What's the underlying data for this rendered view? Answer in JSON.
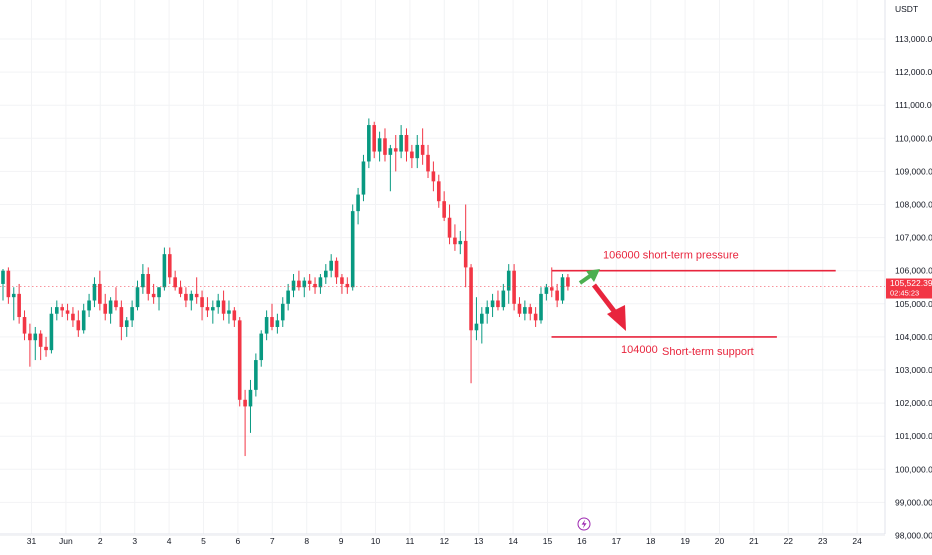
{
  "currency": "USDT",
  "price_tag": {
    "price": "105,522.39",
    "countdown": "02:45:23",
    "color": "#f23645"
  },
  "colors": {
    "up": "#089981",
    "down": "#f23645",
    "annotation": "#e8253d",
    "arrow_up": "#4caf50",
    "grid": "#f2f3f5",
    "axis_text": "#131722"
  },
  "chart_data": {
    "type": "candlestick",
    "title": "",
    "ylim": [
      98000,
      113500
    ],
    "y_ticks": [
      "98,000.00",
      "99,000.00",
      "100,000.00",
      "101,000.00",
      "102,000.00",
      "103,000.00",
      "104,000.00",
      "105,000.00",
      "106,000.00",
      "107,000.00",
      "108,000.00",
      "109,000.00",
      "110,000.00",
      "111,000.00",
      "112,000.00",
      "113,000.00"
    ],
    "x_ticks": [
      {
        "label": "31",
        "date": "2025-05-31"
      },
      {
        "label": "Jun",
        "date": "2025-06-01"
      },
      {
        "label": "2",
        "date": "2025-06-02"
      },
      {
        "label": "3",
        "date": "2025-06-03"
      },
      {
        "label": "4",
        "date": "2025-06-04"
      },
      {
        "label": "5",
        "date": "2025-06-05"
      },
      {
        "label": "6",
        "date": "2025-06-06"
      },
      {
        "label": "7",
        "date": "2025-06-07"
      },
      {
        "label": "8",
        "date": "2025-06-08"
      },
      {
        "label": "9",
        "date": "2025-06-09"
      },
      {
        "label": "10",
        "date": "2025-06-10"
      },
      {
        "label": "11",
        "date": "2025-06-11"
      },
      {
        "label": "12",
        "date": "2025-06-12"
      },
      {
        "label": "13",
        "date": "2025-06-13"
      },
      {
        "label": "14",
        "date": "2025-06-14"
      },
      {
        "label": "15",
        "date": "2025-06-15"
      },
      {
        "label": "16",
        "date": "2025-06-16"
      },
      {
        "label": "17",
        "date": "2025-06-17"
      },
      {
        "label": "18",
        "date": "2025-06-18"
      },
      {
        "label": "19",
        "date": "2025-06-19"
      },
      {
        "label": "20",
        "date": "2025-06-20"
      },
      {
        "label": "21",
        "date": "2025-06-21"
      },
      {
        "label": "22",
        "date": "2025-06-22"
      },
      {
        "label": "23",
        "date": "2025-06-23"
      },
      {
        "label": "24",
        "date": "2025-06-24"
      }
    ],
    "current_price": 105522.39,
    "candles": [
      {
        "o": 105600,
        "h": 106050,
        "l": 105100,
        "c": 106000
      },
      {
        "o": 106000,
        "h": 106100,
        "l": 105000,
        "c": 105200
      },
      {
        "o": 105200,
        "h": 105500,
        "l": 104500,
        "c": 105300
      },
      {
        "o": 105300,
        "h": 105600,
        "l": 104400,
        "c": 104600
      },
      {
        "o": 104600,
        "h": 104800,
        "l": 103900,
        "c": 104100
      },
      {
        "o": 104100,
        "h": 104400,
        "l": 103100,
        "c": 103900
      },
      {
        "o": 103900,
        "h": 104300,
        "l": 103300,
        "c": 104100
      },
      {
        "o": 104100,
        "h": 104200,
        "l": 103300,
        "c": 103700
      },
      {
        "o": 103700,
        "h": 104000,
        "l": 103400,
        "c": 103600
      },
      {
        "o": 103600,
        "h": 104900,
        "l": 103500,
        "c": 104700
      },
      {
        "o": 104700,
        "h": 105100,
        "l": 104500,
        "c": 104900
      },
      {
        "o": 104900,
        "h": 105000,
        "l": 104600,
        "c": 104800
      },
      {
        "o": 104800,
        "h": 105000,
        "l": 104500,
        "c": 104700
      },
      {
        "o": 104700,
        "h": 104900,
        "l": 104300,
        "c": 104500
      },
      {
        "o": 104500,
        "h": 104800,
        "l": 104000,
        "c": 104200
      },
      {
        "o": 104200,
        "h": 105000,
        "l": 104100,
        "c": 104800
      },
      {
        "o": 104800,
        "h": 105300,
        "l": 104600,
        "c": 105100
      },
      {
        "o": 105100,
        "h": 105800,
        "l": 104900,
        "c": 105600
      },
      {
        "o": 105600,
        "h": 106000,
        "l": 104800,
        "c": 105000
      },
      {
        "o": 105000,
        "h": 105300,
        "l": 104500,
        "c": 104700
      },
      {
        "o": 104700,
        "h": 105200,
        "l": 104400,
        "c": 105100
      },
      {
        "o": 105100,
        "h": 105500,
        "l": 104800,
        "c": 104900
      },
      {
        "o": 104900,
        "h": 105100,
        "l": 103900,
        "c": 104300
      },
      {
        "o": 104300,
        "h": 104600,
        "l": 104000,
        "c": 104500
      },
      {
        "o": 104500,
        "h": 105100,
        "l": 104300,
        "c": 104900
      },
      {
        "o": 104900,
        "h": 105700,
        "l": 104800,
        "c": 105500
      },
      {
        "o": 105500,
        "h": 106200,
        "l": 105300,
        "c": 105900
      },
      {
        "o": 105900,
        "h": 106100,
        "l": 105100,
        "c": 105300
      },
      {
        "o": 105300,
        "h": 105600,
        "l": 105000,
        "c": 105200
      },
      {
        "o": 105200,
        "h": 105500,
        "l": 104800,
        "c": 105500
      },
      {
        "o": 105500,
        "h": 106700,
        "l": 105400,
        "c": 106500
      },
      {
        "o": 106500,
        "h": 106700,
        "l": 105600,
        "c": 105800
      },
      {
        "o": 105800,
        "h": 106000,
        "l": 105400,
        "c": 105500
      },
      {
        "o": 105500,
        "h": 105700,
        "l": 105200,
        "c": 105300
      },
      {
        "o": 105300,
        "h": 105500,
        "l": 104900,
        "c": 105100
      },
      {
        "o": 105100,
        "h": 105400,
        "l": 104800,
        "c": 105300
      },
      {
        "o": 105300,
        "h": 105800,
        "l": 105000,
        "c": 105200
      },
      {
        "o": 105200,
        "h": 105400,
        "l": 104500,
        "c": 104900
      },
      {
        "o": 104900,
        "h": 105200,
        "l": 104600,
        "c": 104800
      },
      {
        "o": 104800,
        "h": 105100,
        "l": 104400,
        "c": 104900
      },
      {
        "o": 104900,
        "h": 105300,
        "l": 104700,
        "c": 105100
      },
      {
        "o": 105100,
        "h": 105400,
        "l": 104500,
        "c": 104700
      },
      {
        "o": 104700,
        "h": 105100,
        "l": 104400,
        "c": 104800
      },
      {
        "o": 104800,
        "h": 104900,
        "l": 104300,
        "c": 104500
      },
      {
        "o": 104500,
        "h": 104600,
        "l": 101900,
        "c": 102100
      },
      {
        "o": 102100,
        "h": 102400,
        "l": 100400,
        "c": 101900
      },
      {
        "o": 101900,
        "h": 102700,
        "l": 101100,
        "c": 102400
      },
      {
        "o": 102400,
        "h": 103500,
        "l": 102200,
        "c": 103300
      },
      {
        "o": 103300,
        "h": 104200,
        "l": 103100,
        "c": 104100
      },
      {
        "o": 104100,
        "h": 104800,
        "l": 103900,
        "c": 104600
      },
      {
        "o": 104600,
        "h": 105000,
        "l": 104200,
        "c": 104300
      },
      {
        "o": 104300,
        "h": 104700,
        "l": 104100,
        "c": 104500
      },
      {
        "o": 104500,
        "h": 105200,
        "l": 104300,
        "c": 105000
      },
      {
        "o": 105000,
        "h": 105600,
        "l": 104800,
        "c": 105400
      },
      {
        "o": 105400,
        "h": 105900,
        "l": 105200,
        "c": 105700
      },
      {
        "o": 105700,
        "h": 106000,
        "l": 105400,
        "c": 105500
      },
      {
        "o": 105500,
        "h": 105800,
        "l": 105200,
        "c": 105700
      },
      {
        "o": 105700,
        "h": 105900,
        "l": 105400,
        "c": 105600
      },
      {
        "o": 105600,
        "h": 105800,
        "l": 105300,
        "c": 105500
      },
      {
        "o": 105500,
        "h": 105900,
        "l": 105300,
        "c": 105800
      },
      {
        "o": 105800,
        "h": 106200,
        "l": 105600,
        "c": 106000
      },
      {
        "o": 106000,
        "h": 106500,
        "l": 105800,
        "c": 106300
      },
      {
        "o": 106300,
        "h": 106400,
        "l": 105600,
        "c": 105800
      },
      {
        "o": 105800,
        "h": 105900,
        "l": 105300,
        "c": 105600
      },
      {
        "o": 105600,
        "h": 105800,
        "l": 105300,
        "c": 105500
      },
      {
        "o": 105500,
        "h": 108000,
        "l": 105400,
        "c": 107800
      },
      {
        "o": 107800,
        "h": 108500,
        "l": 107400,
        "c": 108300
      },
      {
        "o": 108300,
        "h": 109500,
        "l": 108100,
        "c": 109300
      },
      {
        "o": 109300,
        "h": 110600,
        "l": 109100,
        "c": 110400
      },
      {
        "o": 110400,
        "h": 110500,
        "l": 109400,
        "c": 109600
      },
      {
        "o": 109600,
        "h": 110200,
        "l": 109300,
        "c": 110000
      },
      {
        "o": 110000,
        "h": 110300,
        "l": 109300,
        "c": 109500
      },
      {
        "o": 109500,
        "h": 109800,
        "l": 108400,
        "c": 109700
      },
      {
        "o": 109700,
        "h": 110100,
        "l": 109000,
        "c": 109600
      },
      {
        "o": 109600,
        "h": 110400,
        "l": 109400,
        "c": 110100
      },
      {
        "o": 110100,
        "h": 110300,
        "l": 109300,
        "c": 109600
      },
      {
        "o": 109600,
        "h": 109800,
        "l": 109100,
        "c": 109400
      },
      {
        "o": 109400,
        "h": 110100,
        "l": 109100,
        "c": 109800
      },
      {
        "o": 109800,
        "h": 110300,
        "l": 109200,
        "c": 109500
      },
      {
        "o": 109500,
        "h": 109800,
        "l": 108800,
        "c": 109000
      },
      {
        "o": 109000,
        "h": 109300,
        "l": 108400,
        "c": 108700
      },
      {
        "o": 108700,
        "h": 108900,
        "l": 107900,
        "c": 108100
      },
      {
        "o": 108100,
        "h": 108400,
        "l": 107500,
        "c": 107600
      },
      {
        "o": 107600,
        "h": 108000,
        "l": 106800,
        "c": 107000
      },
      {
        "o": 107000,
        "h": 107400,
        "l": 106600,
        "c": 106800
      },
      {
        "o": 106800,
        "h": 107200,
        "l": 106500,
        "c": 106900
      },
      {
        "o": 106900,
        "h": 108000,
        "l": 105500,
        "c": 106100
      },
      {
        "o": 106100,
        "h": 106200,
        "l": 102600,
        "c": 104200
      },
      {
        "o": 104200,
        "h": 105200,
        "l": 103900,
        "c": 104400
      },
      {
        "o": 104400,
        "h": 104900,
        "l": 103800,
        "c": 104700
      },
      {
        "o": 104700,
        "h": 105100,
        "l": 104400,
        "c": 104900
      },
      {
        "o": 104900,
        "h": 105300,
        "l": 104600,
        "c": 105100
      },
      {
        "o": 105100,
        "h": 105400,
        "l": 104800,
        "c": 104900
      },
      {
        "o": 104900,
        "h": 105600,
        "l": 104800,
        "c": 105400
      },
      {
        "o": 105400,
        "h": 106200,
        "l": 105000,
        "c": 106000
      },
      {
        "o": 106000,
        "h": 106200,
        "l": 104800,
        "c": 105000
      },
      {
        "o": 105000,
        "h": 105200,
        "l": 104600,
        "c": 104700
      },
      {
        "o": 104700,
        "h": 105100,
        "l": 104500,
        "c": 104900
      },
      {
        "o": 104900,
        "h": 105000,
        "l": 104500,
        "c": 104700
      },
      {
        "o": 104700,
        "h": 104900,
        "l": 104300,
        "c": 104500
      },
      {
        "o": 104500,
        "h": 105500,
        "l": 104400,
        "c": 105300
      },
      {
        "o": 105300,
        "h": 105600,
        "l": 105100,
        "c": 105500
      },
      {
        "o": 105500,
        "h": 106100,
        "l": 105200,
        "c": 105400
      },
      {
        "o": 105400,
        "h": 105600,
        "l": 104900,
        "c": 105100
      },
      {
        "o": 105100,
        "h": 105900,
        "l": 105000,
        "c": 105800
      },
      {
        "o": 105800,
        "h": 105900,
        "l": 105400,
        "c": 105522
      }
    ]
  },
  "annotations": {
    "pressure": {
      "label": "106000  short-term pressure",
      "price": 106000,
      "from": "2025-06-15",
      "to": "2025-06-23"
    },
    "support": {
      "label_value": "104000",
      "label_text": "Short-term support",
      "price": 104000,
      "from": "2025-06-15",
      "to": "2025-06-21"
    }
  }
}
